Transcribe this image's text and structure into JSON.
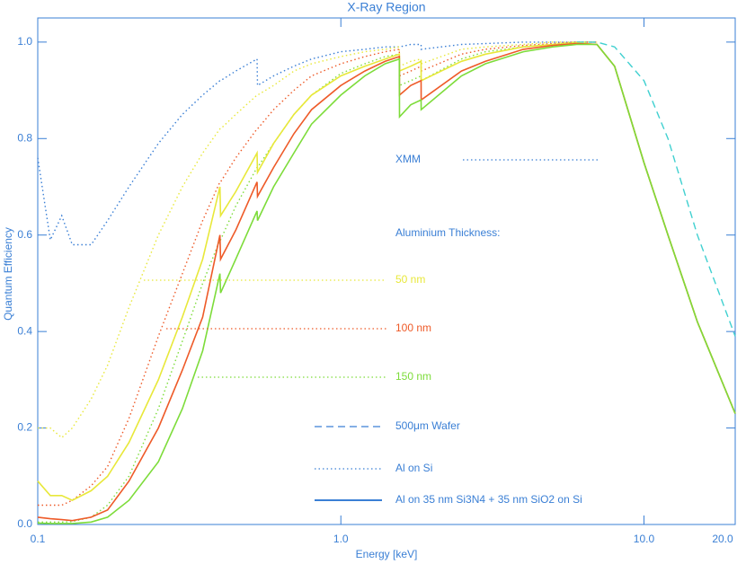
{
  "chart_data": {
    "type": "line",
    "title": "X-Ray Region",
    "xlabel": "Energy [keV]",
    "ylabel": "Quantum Efficiency",
    "xscale": "log",
    "xlim": [
      0.1,
      20
    ],
    "ylim": [
      0,
      1.05
    ],
    "xticks": [
      0.1,
      {
        "value": 1,
        "label": "1.0"
      },
      {
        "value": 10,
        "label": "10.0"
      },
      {
        "value": 20,
        "label": "20.0"
      }
    ],
    "yticks": [
      {
        "value": 0,
        "label": "0.0"
      },
      0.2,
      0.4,
      0.6,
      0.8,
      {
        "value": 1,
        "label": "1.0"
      }
    ],
    "annotation": "Aluminium Thickness:",
    "legend_styles": [
      {
        "label": "Al on Si",
        "style": "dotted"
      },
      {
        "label": "Al on 35 nm Si3N4 + 35 nm SiO2 on Si",
        "style": "solid"
      }
    ],
    "x": [
      0.1,
      0.11,
      0.12,
      0.13,
      0.15,
      0.17,
      0.2,
      0.25,
      0.3,
      0.35,
      0.399,
      0.401,
      0.45,
      0.529,
      0.531,
      0.6,
      0.7,
      0.8,
      1.0,
      1.2,
      1.4,
      1.559,
      1.561,
      1.7,
      1.839,
      1.841,
      2.5,
      3,
      4,
      5,
      6,
      7,
      8,
      10,
      12,
      15,
      20
    ],
    "series": [
      {
        "name": "XMM",
        "color": "#3a7fd5",
        "style": "dotted",
        "values": [
          0.76,
          0.59,
          0.64,
          0.58,
          0.58,
          0.63,
          0.7,
          0.79,
          0.85,
          0.89,
          0.92,
          0.92,
          0.94,
          0.965,
          0.91,
          0.93,
          0.95,
          0.965,
          0.98,
          0.985,
          0.99,
          0.99,
          0.99,
          0.995,
          0.995,
          0.985,
          0.995,
          0.997,
          1.0,
          1.0,
          1.0,
          1.0,
          null,
          null,
          null,
          null,
          null
        ]
      },
      {
        "name": "50 nm",
        "color": "#e8e83a",
        "style": "dotted",
        "values": [
          0.2,
          0.2,
          0.18,
          0.2,
          0.26,
          0.33,
          0.45,
          0.6,
          0.7,
          0.77,
          0.82,
          0.82,
          0.85,
          0.89,
          0.89,
          0.91,
          0.94,
          0.955,
          0.97,
          0.98,
          0.985,
          0.99,
          0.95,
          0.96,
          0.965,
          0.955,
          0.985,
          0.99,
          0.995,
          1.0,
          1.0,
          1.0,
          null,
          null,
          null,
          null,
          null
        ]
      },
      {
        "name": "100 nm",
        "color": "#ee5a28",
        "style": "dotted",
        "values": [
          0.04,
          0.04,
          0.04,
          0.05,
          0.08,
          0.12,
          0.22,
          0.39,
          0.52,
          0.63,
          0.71,
          0.71,
          0.76,
          0.82,
          0.82,
          0.86,
          0.9,
          0.93,
          0.955,
          0.97,
          0.98,
          0.985,
          0.93,
          0.94,
          0.95,
          0.94,
          0.975,
          0.985,
          0.993,
          0.997,
          1.0,
          1.0,
          null,
          null,
          null,
          null,
          null
        ]
      },
      {
        "name": "150 nm",
        "color": "#7ddc3a",
        "style": "dotted",
        "values": [
          0.005,
          0.005,
          0.005,
          0.006,
          0.015,
          0.04,
          0.1,
          0.24,
          0.38,
          0.5,
          0.59,
          0.59,
          0.66,
          0.74,
          0.74,
          0.79,
          0.85,
          0.89,
          0.935,
          0.955,
          0.97,
          0.975,
          0.91,
          0.92,
          0.93,
          0.92,
          0.965,
          0.98,
          0.99,
          0.995,
          1.0,
          1.0,
          null,
          null,
          null,
          null,
          null
        ]
      },
      {
        "name": "500μm Wafer",
        "color": "#40d0d0",
        "style": "dashed",
        "values": [
          null,
          null,
          null,
          null,
          null,
          null,
          null,
          null,
          null,
          null,
          null,
          null,
          null,
          null,
          null,
          null,
          null,
          null,
          null,
          null,
          null,
          null,
          null,
          null,
          null,
          null,
          null,
          null,
          null,
          null,
          1.0,
          1.0,
          0.99,
          0.92,
          0.8,
          0.6,
          0.39
        ]
      },
      {
        "color": "#e8e83a",
        "style": "solid",
        "values": [
          0.09,
          0.06,
          0.06,
          0.05,
          0.07,
          0.1,
          0.17,
          0.3,
          0.43,
          0.55,
          0.7,
          0.64,
          0.69,
          0.77,
          0.73,
          0.79,
          0.85,
          0.89,
          0.93,
          0.95,
          0.965,
          0.975,
          0.94,
          0.95,
          0.96,
          0.92,
          0.96,
          0.975,
          0.99,
          0.995,
          0.998,
          0.995,
          0.95,
          0.75,
          0.6,
          0.42,
          0.23
        ]
      },
      {
        "color": "#ee5a28",
        "style": "solid",
        "values": [
          0.015,
          0.012,
          0.01,
          0.008,
          0.015,
          0.03,
          0.09,
          0.2,
          0.32,
          0.43,
          0.6,
          0.55,
          0.61,
          0.71,
          0.68,
          0.74,
          0.81,
          0.86,
          0.91,
          0.94,
          0.96,
          0.97,
          0.89,
          0.91,
          0.92,
          0.88,
          0.94,
          0.96,
          0.985,
          0.993,
          0.997,
          0.995,
          0.95,
          0.75,
          0.6,
          0.42,
          0.23
        ]
      },
      {
        "color": "#7ddc3a",
        "style": "solid",
        "values": [
          0.003,
          0.002,
          0.002,
          0.002,
          0.005,
          0.015,
          0.05,
          0.13,
          0.24,
          0.36,
          0.52,
          0.48,
          0.55,
          0.65,
          0.63,
          0.7,
          0.77,
          0.83,
          0.89,
          0.93,
          0.955,
          0.965,
          0.845,
          0.87,
          0.88,
          0.86,
          0.93,
          0.955,
          0.98,
          0.99,
          0.995,
          0.995,
          0.95,
          0.75,
          0.6,
          0.42,
          0.23
        ]
      }
    ]
  }
}
